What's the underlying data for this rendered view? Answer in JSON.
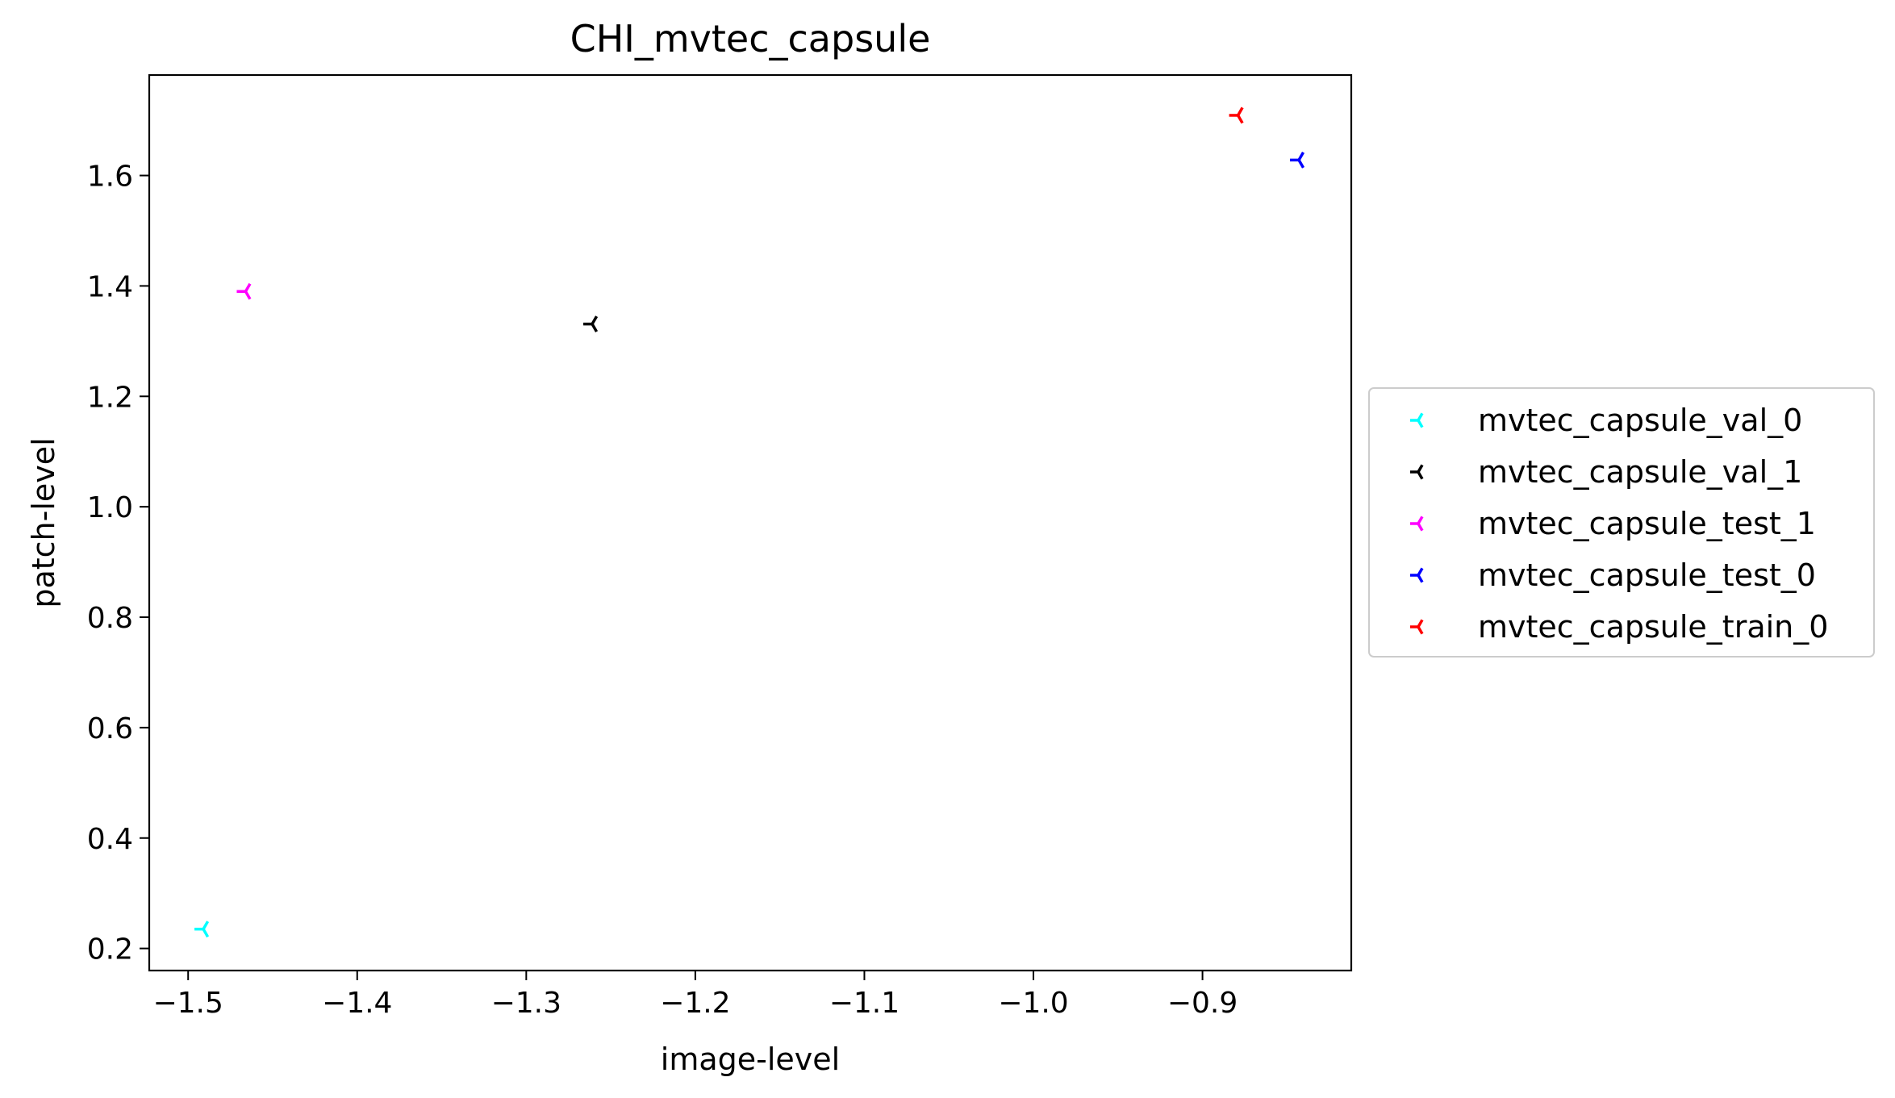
{
  "chart_data": {
    "type": "scatter",
    "title": "CHI_mvtec_capsule",
    "xlabel": "image-level",
    "ylabel": "patch-level",
    "xlim": [
      -1.523,
      -0.812
    ],
    "ylim": [
      0.16,
      1.782
    ],
    "x_ticks": [
      -1.5,
      -1.4,
      -1.3,
      -1.2,
      -1.1,
      -1.0,
      -0.9
    ],
    "x_tick_labels": [
      "−1.5",
      "−1.4",
      "−1.3",
      "−1.2",
      "−1.1",
      "−1.0",
      "−0.9"
    ],
    "y_ticks": [
      0.2,
      0.4,
      0.6,
      0.8,
      1.0,
      1.2,
      1.4,
      1.6
    ],
    "y_tick_labels": [
      "0.2",
      "0.4",
      "0.6",
      "0.8",
      "1.0",
      "1.2",
      "1.4",
      "1.6"
    ],
    "grid": false,
    "legend_position": "right-center outside",
    "marker": "tri-left",
    "series": [
      {
        "name": "mvtec_capsule_val_0",
        "color": "#00ffff",
        "x": [
          -1.491
        ],
        "y": [
          0.235
        ]
      },
      {
        "name": "mvtec_capsule_val_1",
        "color": "#000000",
        "x": [
          -1.261
        ],
        "y": [
          1.331
        ]
      },
      {
        "name": "mvtec_capsule_test_1",
        "color": "#ff00ff",
        "x": [
          -1.466
        ],
        "y": [
          1.39
        ]
      },
      {
        "name": "mvtec_capsule_test_0",
        "color": "#0000ff",
        "x": [
          -0.843
        ],
        "y": [
          1.628
        ]
      },
      {
        "name": "mvtec_capsule_train_0",
        "color": "#ff0000",
        "x": [
          -0.879
        ],
        "y": [
          1.709
        ]
      }
    ]
  }
}
